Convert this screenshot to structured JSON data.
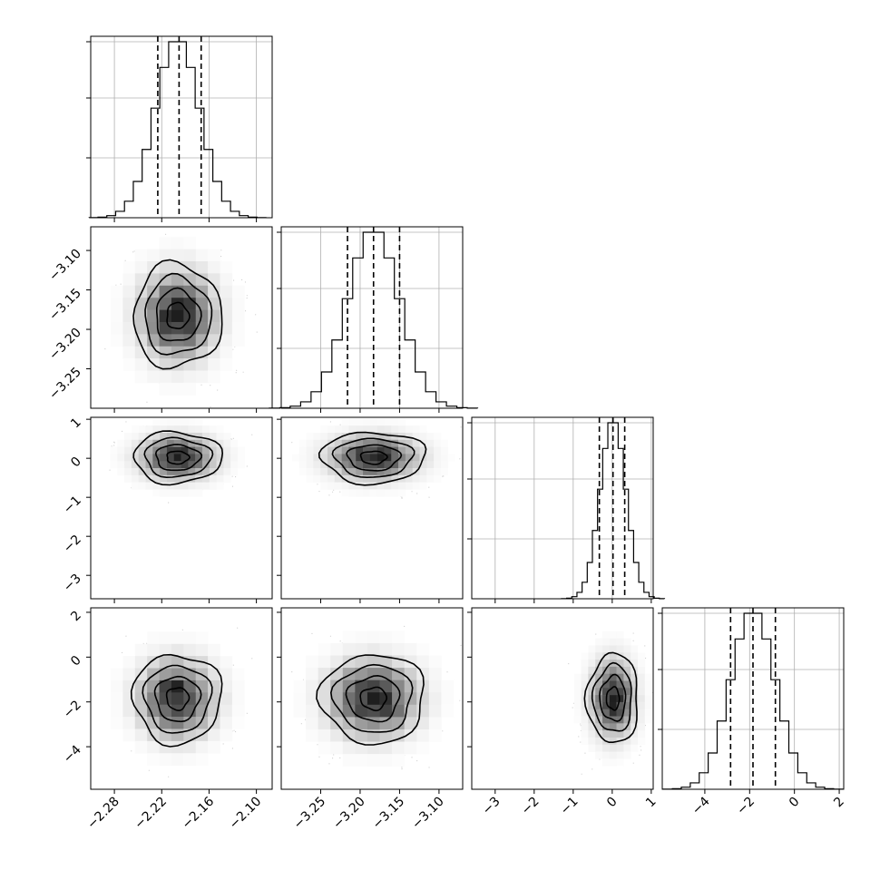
{
  "chart_data": {
    "type": "corner",
    "parameters": [
      {
        "range": [
          -2.31,
          -2.08
        ],
        "ticks": [
          -2.28,
          -2.22,
          -2.16,
          -2.1
        ],
        "tick_labels": [
          "−2.28",
          "−2.22",
          "−2.16",
          "−2.10"
        ],
        "mean": -2.2,
        "sigma": 0.028,
        "quantiles": [
          -2.225,
          -2.198,
          -2.17
        ]
      },
      {
        "range": [
          -3.3,
          -3.07
        ],
        "ticks": [
          -3.25,
          -3.2,
          -3.15,
          -3.1
        ],
        "tick_labels": [
          "−3.25",
          "−3.20",
          "−3.15",
          "−3.10"
        ],
        "mean": -3.183,
        "sigma": 0.033,
        "quantiles": [
          -3.216,
          -3.183,
          -3.15
        ]
      },
      {
        "range": [
          -3.6,
          1.05
        ],
        "ticks": [
          -3,
          -2,
          -1,
          0,
          1
        ],
        "tick_labels": [
          "−3",
          "−2",
          "−1",
          "0",
          "1"
        ],
        "mean": 0.02,
        "sigma": 0.33,
        "quantiles": [
          -0.33,
          0.02,
          0.32
        ]
      },
      {
        "range": [
          -5.9,
          2.2
        ],
        "ticks": [
          -4,
          -2,
          0,
          2
        ],
        "tick_labels": [
          "−4",
          "−2",
          "0",
          "2"
        ],
        "mean": -1.85,
        "sigma": 1.0,
        "quantiles": [
          -2.85,
          -1.85,
          -0.85
        ]
      }
    ],
    "histogram_grid_y_fractions": [
      0.0,
      0.33,
      0.66,
      0.97
    ],
    "grid": true
  },
  "colors": {
    "scatter": "#000000",
    "density_dark": "#000000",
    "background": "#ffffff"
  }
}
